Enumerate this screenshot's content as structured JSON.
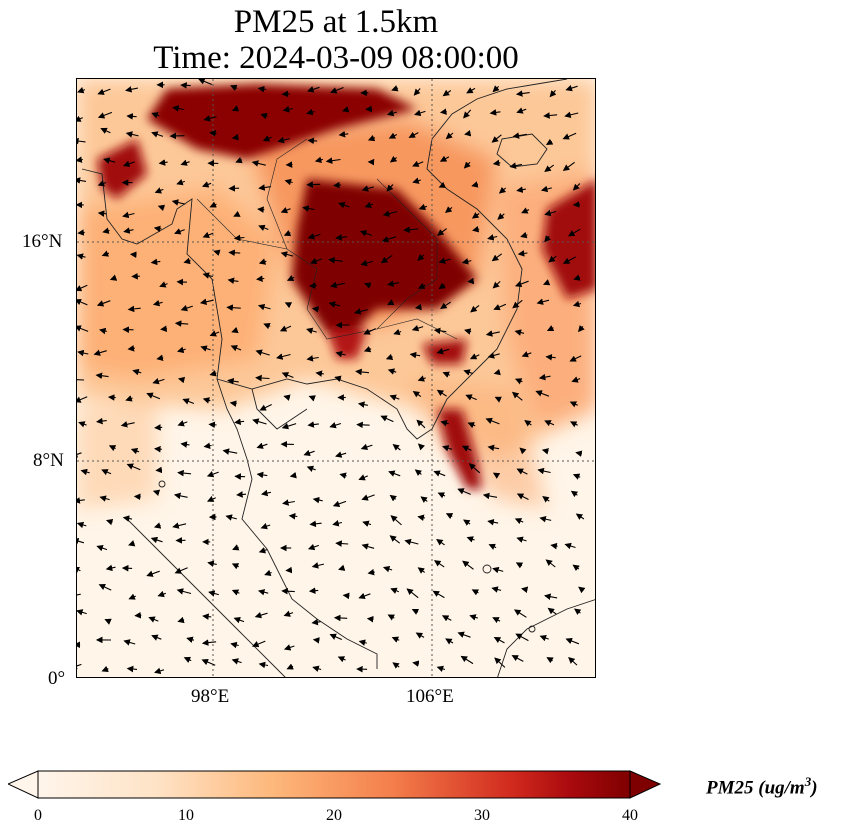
{
  "title": {
    "line1": "PM25 at 1.5km",
    "line2": "Time: 2024-03-09 08:00:00"
  },
  "axes": {
    "lat_ticks": [
      {
        "label": "16°N",
        "value": 16
      },
      {
        "label": "8°N",
        "value": 8
      },
      {
        "label": "0°",
        "value": 0
      }
    ],
    "lon_ticks": [
      {
        "label": "98°E",
        "value": 98
      },
      {
        "label": "106°E",
        "value": 106
      }
    ],
    "extent": {
      "lon_min": 93,
      "lon_max": 112,
      "lat_min": 0,
      "lat_max": 22
    },
    "gridlines": "dotted"
  },
  "map": {
    "variable": "PM25",
    "region": "Southeast Asia (Indochina, Malay Peninsula)",
    "colormap": [
      "#fff5eb",
      "#fdd0a2",
      "#fdae6b",
      "#f16913",
      "#d94801",
      "#a50f15",
      "#7f0000"
    ],
    "hotspots": [
      {
        "lon_range": [
          103,
          108
        ],
        "lat_range": [
          15,
          19
        ],
        "level": 40
      },
      {
        "lon_range": [
          97,
          104
        ],
        "lat_range": [
          19,
          22
        ],
        "level": 38
      },
      {
        "lon_range": [
          93,
          96
        ],
        "lat_range": [
          17.5,
          20.5
        ],
        "level": 34
      },
      {
        "lon_range": [
          109.5,
          112
        ],
        "lat_range": [
          14,
          18
        ],
        "level": 36
      },
      {
        "lon_range": [
          106,
          108
        ],
        "lat_range": [
          7,
          10
        ],
        "level": 35
      },
      {
        "lon_range": [
          104.5,
          107
        ],
        "lat_range": [
          11.5,
          13
        ],
        "level": 34
      },
      {
        "lon_range": [
          102,
          105
        ],
        "lat_range": [
          12,
          15
        ],
        "level": 30
      }
    ],
    "wind_vectors": "quiver arrows, predominantly easterly/northeasterly"
  },
  "colorbar": {
    "ticks": [
      "0",
      "10",
      "20",
      "30",
      "40"
    ],
    "min": 0,
    "max": 40,
    "extend": "both",
    "label_main": "PM25 (ug/m",
    "label_sup": "3",
    "label_end": ")"
  }
}
